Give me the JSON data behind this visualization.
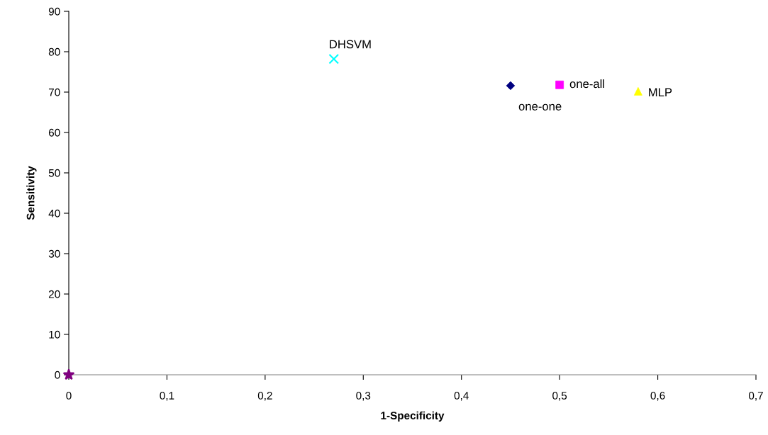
{
  "chart_data": {
    "type": "scatter",
    "xlabel": "1-Specificity",
    "ylabel": "Sensitivity",
    "xlim": [
      0,
      0.7
    ],
    "ylim": [
      0,
      90
    ],
    "xticks": [
      0,
      {
        "value": 0.1,
        "label": "0,1"
      },
      {
        "value": 0.2,
        "label": "0,2"
      },
      {
        "value": 0.3,
        "label": "0,3"
      },
      {
        "value": 0.4,
        "label": "0,4"
      },
      {
        "value": 0.5,
        "label": "0,5"
      },
      {
        "value": 0.6,
        "label": "0,6"
      },
      {
        "value": 0.7,
        "label": "0,7"
      }
    ],
    "yticks": [
      0,
      10,
      20,
      30,
      40,
      50,
      60,
      70,
      80,
      90
    ],
    "grid": false,
    "legend": false,
    "series": [
      {
        "name": "DHSVM",
        "color": "#00ffff",
        "marker": "cross",
        "x": [
          0.27
        ],
        "values": [
          78.2
        ]
      },
      {
        "name": "one-one",
        "color": "#000080",
        "marker": "diamond",
        "x": [
          0.45
        ],
        "values": [
          71.6
        ]
      },
      {
        "name": "one-all",
        "color": "#ff00ff",
        "marker": "square",
        "x": [
          0.5
        ],
        "values": [
          71.8
        ]
      },
      {
        "name": "MLP",
        "color": "#ffff00",
        "marker": "triangle",
        "x": [
          0.58
        ],
        "values": [
          70.2
        ]
      },
      {
        "color": "#800080",
        "marker": "star",
        "x": [
          0
        ],
        "values": [
          0
        ]
      }
    ]
  }
}
